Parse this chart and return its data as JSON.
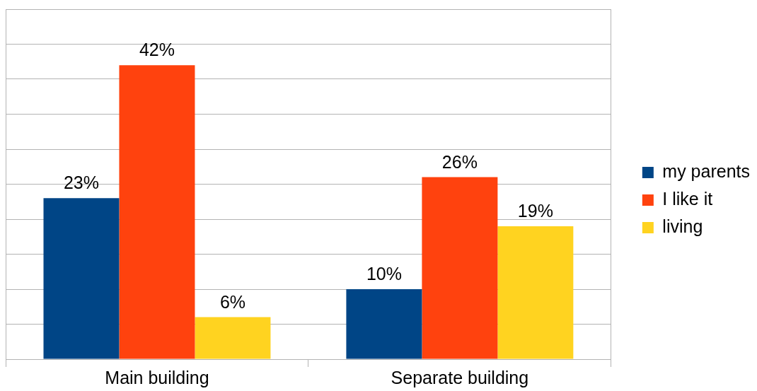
{
  "chart_data": {
    "type": "bar",
    "categories": [
      "Main building",
      "Separate building"
    ],
    "series": [
      {
        "name": "my parents",
        "color": "#004586",
        "values": [
          23,
          10
        ],
        "value_labels": [
          "23%",
          "10%"
        ]
      },
      {
        "name": "I like it",
        "color": "#ff420e",
        "values": [
          42,
          26
        ],
        "value_labels": [
          "42%",
          "26%"
        ]
      },
      {
        "name": "living",
        "color": "#ffd320",
        "values": [
          6,
          19
        ],
        "value_labels": [
          "6%",
          "19%"
        ]
      }
    ],
    "ylim": [
      0,
      50
    ],
    "grid": "y",
    "legend": "right",
    "tick_labels": "x"
  }
}
